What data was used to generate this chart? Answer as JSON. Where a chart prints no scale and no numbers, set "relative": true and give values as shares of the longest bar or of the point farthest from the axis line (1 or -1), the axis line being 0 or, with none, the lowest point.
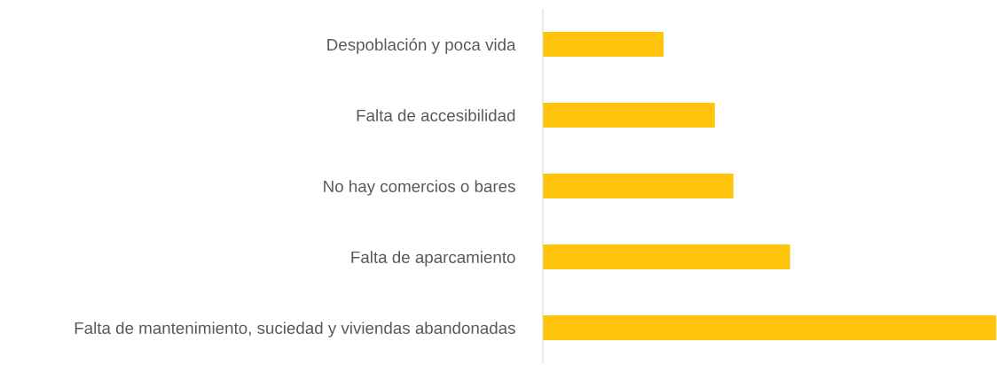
{
  "chart_data": {
    "type": "bar",
    "orientation": "horizontal",
    "relative": true,
    "categories": [
      "Despoblación y poca vida",
      "Falta de accesibilidad",
      "No hay comercios o bares",
      "Falta de aparcamiento",
      "Falta de mantenimiento, suciedad y viviendas abandonadas"
    ],
    "values": [
      0.266,
      0.379,
      0.42,
      0.545,
      1
    ],
    "color": "#ffc50c",
    "grid": false,
    "legend": false
  }
}
